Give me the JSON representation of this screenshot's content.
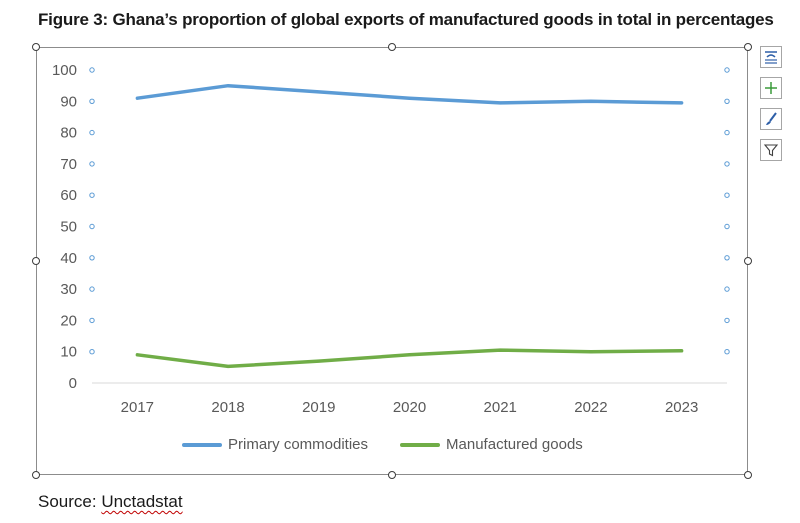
{
  "figure_title": "Figure 3: Ghana’s proportion of global exports of manufactured goods in total in percentages",
  "source": {
    "prefix": "Source: ",
    "name": "Unctadstat"
  },
  "tools": [
    "chart-elements-icon",
    "add-element-icon",
    "chart-styles-brush-icon",
    "chart-filter-icon"
  ],
  "chart_data": {
    "type": "line",
    "title": "",
    "xlabel": "",
    "ylabel": "",
    "categories": [
      "2017",
      "2018",
      "2019",
      "2020",
      "2021",
      "2022",
      "2023"
    ],
    "ylim": [
      0,
      100
    ],
    "yticks": [
      0,
      10,
      20,
      30,
      40,
      50,
      60,
      70,
      80,
      90,
      100
    ],
    "grid": false,
    "legend_position": "bottom",
    "series": [
      {
        "name": "Primary commodities",
        "color": "#5b9bd5",
        "values": [
          91,
          95,
          93,
          91,
          89.5,
          90,
          89.5
        ]
      },
      {
        "name": "Manufactured goods",
        "color": "#70ad47",
        "values": [
          9,
          5.3,
          7,
          9,
          10.5,
          10,
          10.3
        ]
      }
    ]
  }
}
